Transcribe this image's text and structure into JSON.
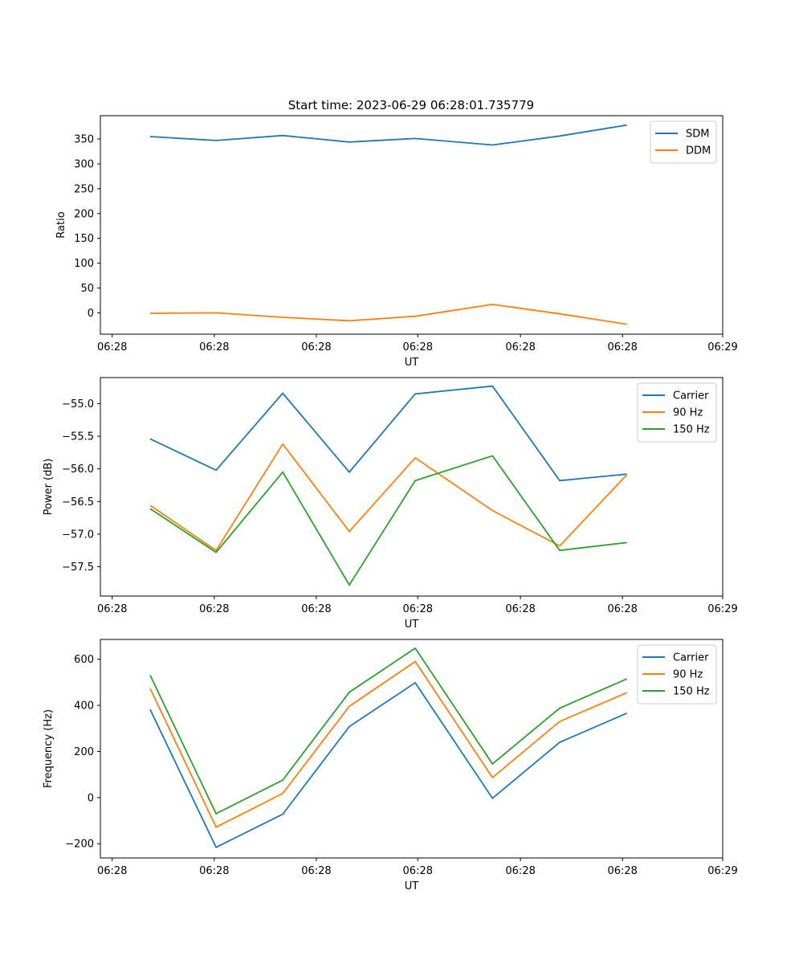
{
  "figure_title": "Start time: 2023-06-29 06:28:01.735779",
  "chart_data": [
    {
      "type": "line",
      "xlabel": "UT",
      "ylabel": "Ratio",
      "x_tick_labels": [
        "06:28",
        "06:28",
        "06:28",
        "06:28",
        "06:28",
        "06:28",
        "06:29"
      ],
      "yticks": [
        0,
        50,
        100,
        150,
        200,
        250,
        300,
        350
      ],
      "ylim": [
        -43,
        397
      ],
      "legend_position": "upper right",
      "series": [
        {
          "name": "SDM",
          "color": "#1f77b4",
          "values": [
            355,
            347,
            357,
            344,
            351,
            338,
            356,
            378
          ]
        },
        {
          "name": "DDM",
          "color": "#ff7f0e",
          "values": [
            -1,
            0,
            -9,
            -16,
            -7,
            17,
            -2,
            -23
          ]
        }
      ]
    },
    {
      "type": "line",
      "xlabel": "UT",
      "ylabel": "Power (dB)",
      "x_tick_labels": [
        "06:28",
        "06:28",
        "06:28",
        "06:28",
        "06:28",
        "06:28",
        "06:29"
      ],
      "yticks": [
        -57.5,
        -57.0,
        -56.5,
        -56.0,
        -55.5,
        -55.0
      ],
      "ytick_labels": [
        "−57.5",
        "−57.0",
        "−56.5",
        "−56.0",
        "−55.5",
        "−55.0"
      ],
      "ylim": [
        -57.95,
        -54.6
      ],
      "legend_position": "upper right",
      "series": [
        {
          "name": "Carrier",
          "color": "#1f77b4",
          "values": [
            -55.54,
            -56.02,
            -54.84,
            -56.05,
            -54.85,
            -54.73,
            -56.18,
            -56.08
          ]
        },
        {
          "name": "90 Hz",
          "color": "#ff7f0e",
          "values": [
            -56.56,
            -57.25,
            -55.62,
            -56.96,
            -55.83,
            -56.64,
            -57.18,
            -56.09
          ]
        },
        {
          "name": "150 Hz",
          "color": "#2ca02c",
          "values": [
            -56.61,
            -57.28,
            -56.05,
            -57.78,
            -56.18,
            -55.8,
            -57.25,
            -57.13
          ]
        }
      ]
    },
    {
      "type": "line",
      "xlabel": "UT",
      "ylabel": "Frequency (Hz)",
      "x_tick_labels": [
        "06:28",
        "06:28",
        "06:28",
        "06:28",
        "06:28",
        "06:28",
        "06:29"
      ],
      "yticks": [
        -200,
        0,
        200,
        400,
        600
      ],
      "ytick_labels": [
        "−200",
        "0",
        "200",
        "400",
        "600"
      ],
      "ylim": [
        -262,
        686
      ],
      "legend_position": "upper right",
      "series": [
        {
          "name": "Carrier",
          "color": "#1f77b4",
          "values": [
            382,
            -216,
            -72,
            308,
            498,
            -3,
            240,
            366
          ]
        },
        {
          "name": "90 Hz",
          "color": "#ff7f0e",
          "values": [
            473,
            -128,
            18,
            396,
            590,
            87,
            330,
            455
          ]
        },
        {
          "name": "150 Hz",
          "color": "#2ca02c",
          "values": [
            531,
            -70,
            76,
            457,
            648,
            146,
            388,
            515
          ]
        }
      ]
    }
  ]
}
